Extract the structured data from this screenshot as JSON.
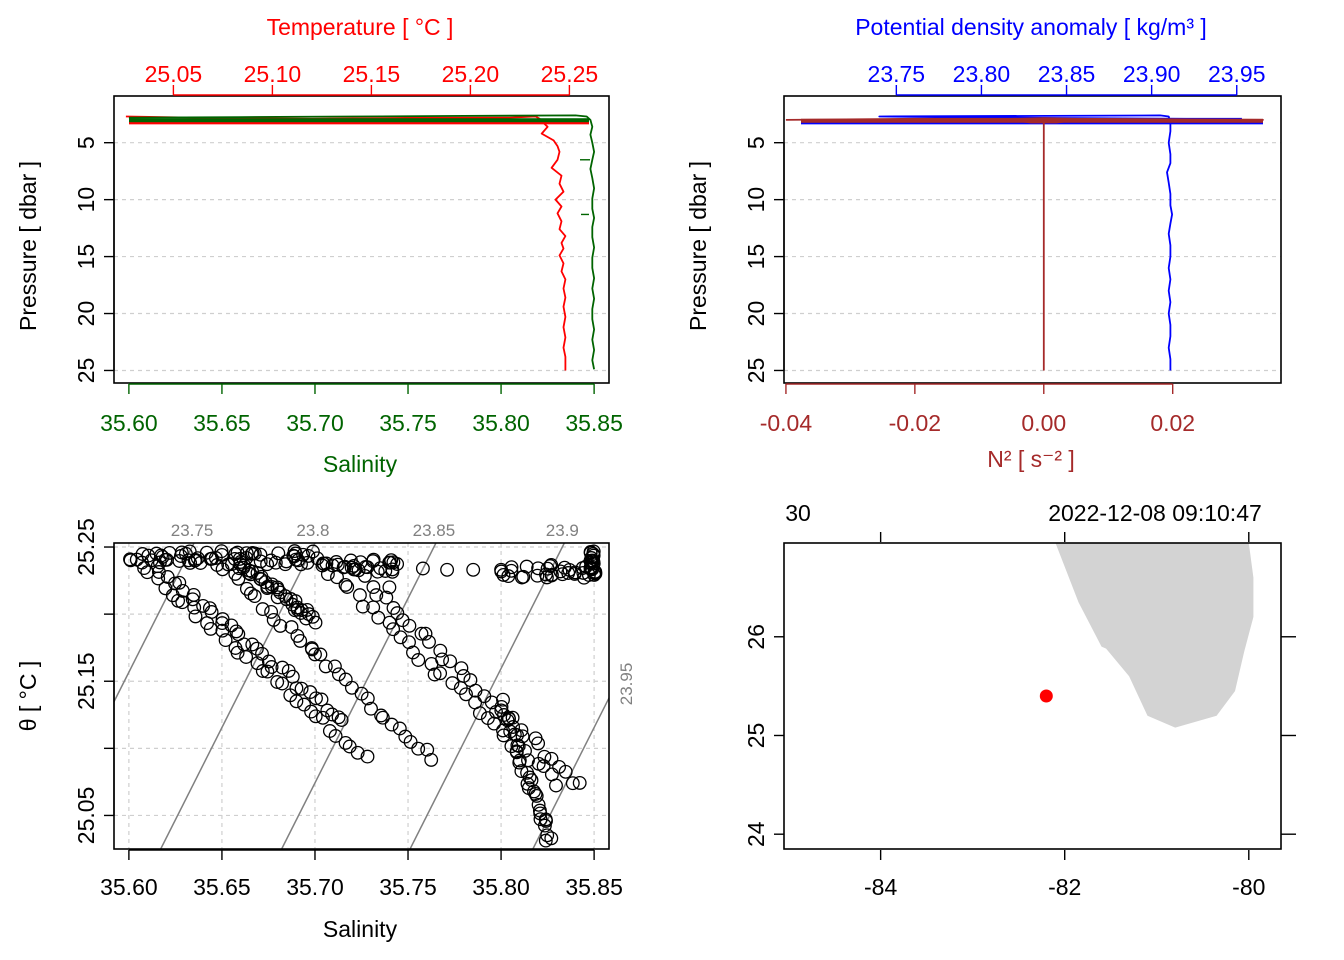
{
  "colors": {
    "temperature": "#ff0000",
    "salinity": "#006400",
    "density": "#0000ff",
    "n2": "#a52a2a",
    "isopycnal": "#808080",
    "land": "#d3d3d3",
    "station": "#ff0000"
  },
  "chart_data": [
    {
      "type": "line",
      "panel": "top-left",
      "title": "",
      "ylabel": "Pressure [ dbar ]",
      "ylim": [
        26.1,
        0.9
      ],
      "yticks": [
        5,
        10,
        15,
        20,
        25
      ],
      "bottom_axis": {
        "label": "Salinity",
        "range": [
          35.592,
          35.858
        ],
        "ticks": [
          "35.60",
          "35.65",
          "35.70",
          "35.75",
          "35.80",
          "35.85"
        ]
      },
      "top_axis": {
        "label": "Temperature [ °C ]",
        "range": [
          25.02,
          25.27
        ],
        "ticks": [
          "25.05",
          "25.10",
          "25.15",
          "25.20",
          "25.25"
        ]
      },
      "series": [
        {
          "name": "Temperature",
          "axis": "top",
          "pressure": [
            2.7,
            2.8,
            2.9,
            2.8,
            2.8,
            2.7,
            2.9,
            3.1,
            3.6,
            4.2,
            4.8,
            5.3,
            5.8,
            6.5,
            7.2,
            7.9,
            8.6,
            9.3,
            10.0,
            10.6,
            11.2,
            11.9,
            12.6,
            13.2,
            13.8,
            14.3,
            14.9,
            15.6,
            16.3,
            17.0,
            17.8,
            18.6,
            19.4,
            20.3,
            21.2,
            22.1,
            23.0,
            23.8,
            24.6,
            25.0
          ],
          "values": [
            25.026,
            25.06,
            25.12,
            25.18,
            25.22,
            25.233,
            25.235,
            25.236,
            25.239,
            25.236,
            25.242,
            25.244,
            25.245,
            25.244,
            25.241,
            25.246,
            25.245,
            25.247,
            25.243,
            25.246,
            25.244,
            25.246,
            25.245,
            25.248,
            25.246,
            25.247,
            25.245,
            25.247,
            25.246,
            25.248,
            25.247,
            25.248,
            25.247,
            25.248,
            25.247,
            25.248,
            25.247,
            25.248,
            25.248,
            25.248
          ]
        },
        {
          "name": "Salinity",
          "axis": "bottom",
          "pressure": [
            2.8,
            2.75,
            2.7,
            2.65,
            2.6,
            2.7,
            3.0,
            3.6,
            4.3,
            5.0,
            5.8,
            6.5,
            7.3,
            8.1,
            9.0,
            9.9,
            10.8,
            11.6,
            12.4,
            13.3,
            14.2,
            15.1,
            16.0,
            16.9,
            17.8,
            18.7,
            19.6,
            20.5,
            21.4,
            22.3,
            23.2,
            24.1,
            24.9
          ],
          "values": [
            35.6,
            35.66,
            35.72,
            35.78,
            35.84,
            35.846,
            35.848,
            35.849,
            35.848,
            35.849,
            35.85,
            35.849,
            35.848,
            35.849,
            35.85,
            35.849,
            35.849,
            35.85,
            35.849,
            35.849,
            35.85,
            35.849,
            35.849,
            35.85,
            35.849,
            35.85,
            35.849,
            35.849,
            35.85,
            35.849,
            35.85,
            35.849,
            35.85
          ]
        }
      ]
    },
    {
      "type": "line",
      "panel": "top-right",
      "title": "",
      "ylabel": "Pressure [ dbar ]",
      "ylim": [
        26.1,
        0.9
      ],
      "yticks": [
        5,
        10,
        15,
        20,
        25
      ],
      "bottom_axis": {
        "label": "N² [ s⁻² ]",
        "range": [
          -0.0403,
          0.0368
        ],
        "ticks": [
          "-0.04",
          "-0.02",
          "0.00",
          "0.02"
        ]
      },
      "top_axis": {
        "label": "Potential density anomaly [ kg/m³ ]",
        "range": [
          23.684,
          23.976
        ],
        "ticks": [
          "23.75",
          "23.80",
          "23.85",
          "23.90",
          "23.95"
        ]
      },
      "series": [
        {
          "name": "Potential density anomaly",
          "axis": "top",
          "pressure": [
            2.9,
            2.9,
            2.85,
            2.8,
            2.7,
            2.6,
            2.7,
            3.2,
            4.0,
            5.0,
            6.0,
            6.8,
            7.6,
            8.5,
            9.5,
            10.5,
            11.3,
            12.1,
            13.0,
            14.0,
            15.0,
            16.0,
            17.0,
            18.0,
            19.0,
            20.0,
            21.0,
            22.0,
            23.0,
            24.0,
            25.0
          ],
          "values": [
            23.953,
            23.92,
            23.86,
            23.8,
            23.74,
            23.905,
            23.91,
            23.911,
            23.911,
            23.91,
            23.911,
            23.911,
            23.909,
            23.91,
            23.911,
            23.911,
            23.912,
            23.911,
            23.91,
            23.911,
            23.911,
            23.91,
            23.911,
            23.91,
            23.911,
            23.91,
            23.911,
            23.911,
            23.91,
            23.911,
            23.911
          ]
        },
        {
          "name": "N2",
          "axis": "bottom",
          "pressure": [
            3.0,
            2.9,
            2.9,
            2.85,
            2.9,
            2.95,
            3.0,
            3.0,
            3.5,
            5,
            7,
            9,
            11,
            13,
            15,
            17,
            19,
            21,
            23,
            25
          ],
          "values": [
            -0.04,
            -0.02,
            -0.005,
            0.0,
            0.005,
            0.02,
            0.034,
            0.0,
            0.0,
            0.0,
            0.0,
            0.0,
            0.0,
            0.0,
            0.0,
            0.0,
            0.0,
            0.0,
            0.0,
            0.0
          ]
        }
      ]
    },
    {
      "type": "scatter",
      "panel": "bottom-left",
      "title": "",
      "xlabel": "Salinity",
      "ylabel": "θ [ °C ]",
      "xlim": [
        35.592,
        35.858
      ],
      "ylim": [
        25.025,
        25.253
      ],
      "xticks": [
        "35.60",
        "35.65",
        "35.70",
        "35.75",
        "35.80",
        "35.85"
      ],
      "yticks": [
        "25.05",
        "25.15",
        "25.25"
      ],
      "isopycnals": [
        "23.75",
        "23.8",
        "23.85",
        "23.9",
        "23.95"
      ],
      "trajectories": [
        {
          "from": [
            35.6,
            25.242
          ],
          "to": [
            35.727,
            25.094
          ]
        },
        {
          "from": [
            35.612,
            25.238
          ],
          "to": [
            35.715,
            25.12
          ]
        },
        {
          "from": [
            35.645,
            25.242
          ],
          "to": [
            35.762,
            25.092
          ]
        },
        {
          "from": [
            35.66,
            25.236
          ],
          "to": [
            35.7,
            25.196
          ]
        },
        {
          "from": [
            35.7,
            25.242
          ],
          "to": [
            35.83,
            25.074
          ]
        },
        {
          "from": [
            35.72,
            25.236
          ],
          "to": [
            35.842,
            25.072
          ]
        },
        {
          "from": [
            35.8,
            25.134
          ],
          "to": [
            35.826,
            25.032
          ]
        }
      ],
      "clusters": [
        {
          "s": [
            35.6,
            35.7
          ],
          "t": 25.242
        },
        {
          "s": [
            35.7,
            35.745
          ],
          "t": 25.236
        },
        {
          "s": [
            35.8,
            35.85
          ],
          "t": 25.232
        },
        {
          "s": [
            35.848,
            35.851
          ],
          "t": [
            25.228,
            25.248
          ]
        }
      ],
      "isolated": [
        [
          35.758,
          25.234
        ],
        [
          35.771,
          25.233
        ],
        [
          35.785,
          25.233
        ],
        [
          35.8,
          25.233
        ],
        [
          35.7,
          25.17
        ],
        [
          35.74,
          25.22
        ]
      ]
    },
    {
      "type": "map",
      "panel": "bottom-right",
      "title": "2022-12-08 09:10:47",
      "corner_label": "30",
      "xlim": [
        -85.05,
        -79.65
      ],
      "ylim": [
        23.85,
        26.95
      ],
      "xticks": [
        "-84",
        "-82",
        "-80"
      ],
      "yticks": [
        "24",
        "25",
        "26"
      ],
      "station": {
        "lon": -82.2,
        "lat": 25.4
      },
      "land_outline": [
        [
          -82.0,
          26.95
        ],
        [
          -80.0,
          26.95
        ],
        [
          -79.95,
          26.6
        ],
        [
          -79.95,
          26.2
        ],
        [
          -80.05,
          25.85
        ],
        [
          -80.15,
          25.45
        ],
        [
          -80.35,
          25.2
        ],
        [
          -80.8,
          25.08
        ],
        [
          -81.1,
          25.2
        ],
        [
          -81.3,
          25.6
        ],
        [
          -81.55,
          25.88
        ],
        [
          -81.6,
          25.9
        ],
        [
          -81.85,
          26.35
        ],
        [
          -82.1,
          26.95
        ]
      ]
    }
  ]
}
